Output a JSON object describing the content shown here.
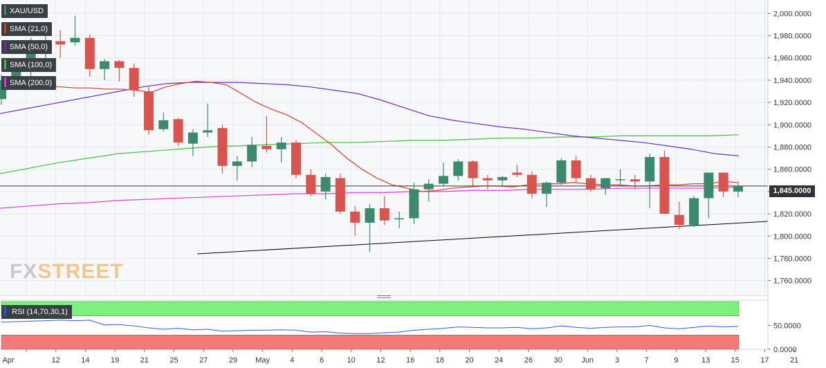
{
  "chart_data": {
    "type": "candlestick",
    "symbol": "XAU/USD",
    "current_price_label": "1,845.0000",
    "current_price": 1845,
    "ylim": [
      1748,
      2012
    ],
    "y_ticks": [
      1760,
      1780,
      1800,
      1820,
      1840,
      1860,
      1880,
      1900,
      1920,
      1940,
      1960,
      1980,
      2000
    ],
    "y_tick_labels": [
      "1,760.0000",
      "1,780.0000",
      "1,800.0000",
      "1,820.0000",
      "1,840.0000",
      "1,860.0000",
      "1,880.0000",
      "1,900.0000",
      "1,920.0000",
      "1,940.0000",
      "1,960.0000",
      "1,980.0000",
      "2,000.0000"
    ],
    "x_tick_labels": [
      "Apr",
      "12",
      "14",
      "19",
      "21",
      "25",
      "27",
      "29",
      "May",
      "4",
      "6",
      "10",
      "12",
      "16",
      "18",
      "20",
      "24",
      "26",
      "30",
      "Jun",
      "3",
      "7",
      "9",
      "13",
      "15",
      "17",
      "21"
    ],
    "colors": {
      "up": "#3b8a6e",
      "down": "#d9534f",
      "sma21": "#d93a2b",
      "sma50": "#6a2cb8",
      "sma100": "#3cbf3c",
      "sma200": "#d73ad9",
      "trendline": "#000000",
      "rsi": "#2a5bd7"
    },
    "candles": [
      {
        "o": 1923,
        "h": 1945,
        "l": 1918,
        "c": 1940
      },
      {
        "o": 1940,
        "h": 1958,
        "l": 1932,
        "c": 1952
      },
      {
        "o": 1952,
        "h": 1978,
        "l": 1942,
        "c": 1970
      },
      {
        "o": 1970,
        "h": 1982,
        "l": 1958,
        "c": 1975
      },
      {
        "o": 1975,
        "h": 1985,
        "l": 1960,
        "c": 1972
      },
      {
        "o": 1974,
        "h": 1998,
        "l": 1971,
        "c": 1978
      },
      {
        "o": 1978,
        "h": 1981,
        "l": 1943,
        "c": 1950
      },
      {
        "o": 1950,
        "h": 1959,
        "l": 1940,
        "c": 1957
      },
      {
        "o": 1957,
        "h": 1958,
        "l": 1939,
        "c": 1951
      },
      {
        "o": 1951,
        "h": 1955,
        "l": 1925,
        "c": 1931
      },
      {
        "o": 1930,
        "h": 1934,
        "l": 1891,
        "c": 1895
      },
      {
        "o": 1896,
        "h": 1911,
        "l": 1894,
        "c": 1904
      },
      {
        "o": 1905,
        "h": 1906,
        "l": 1881,
        "c": 1884
      },
      {
        "o": 1883,
        "h": 1896,
        "l": 1872,
        "c": 1893
      },
      {
        "o": 1893,
        "h": 1919,
        "l": 1889,
        "c": 1895
      },
      {
        "o": 1897,
        "h": 1900,
        "l": 1856,
        "c": 1863
      },
      {
        "o": 1863,
        "h": 1872,
        "l": 1850,
        "c": 1867
      },
      {
        "o": 1867,
        "h": 1889,
        "l": 1862,
        "c": 1882
      },
      {
        "o": 1881,
        "h": 1908,
        "l": 1875,
        "c": 1878
      },
      {
        "o": 1878,
        "h": 1889,
        "l": 1866,
        "c": 1884
      },
      {
        "o": 1884,
        "h": 1886,
        "l": 1852,
        "c": 1855
      },
      {
        "o": 1855,
        "h": 1860,
        "l": 1836,
        "c": 1838
      },
      {
        "o": 1840,
        "h": 1856,
        "l": 1833,
        "c": 1853
      },
      {
        "o": 1852,
        "h": 1856,
        "l": 1820,
        "c": 1822
      },
      {
        "o": 1822,
        "h": 1827,
        "l": 1800,
        "c": 1812
      },
      {
        "o": 1812,
        "h": 1829,
        "l": 1786,
        "c": 1825
      },
      {
        "o": 1825,
        "h": 1836,
        "l": 1810,
        "c": 1814
      },
      {
        "o": 1815,
        "h": 1822,
        "l": 1807,
        "c": 1816
      },
      {
        "o": 1816,
        "h": 1848,
        "l": 1811,
        "c": 1842
      },
      {
        "o": 1842,
        "h": 1851,
        "l": 1831,
        "c": 1847
      },
      {
        "o": 1847,
        "h": 1866,
        "l": 1845,
        "c": 1854
      },
      {
        "o": 1854,
        "h": 1869,
        "l": 1850,
        "c": 1867
      },
      {
        "o": 1867,
        "h": 1868,
        "l": 1845,
        "c": 1852
      },
      {
        "o": 1852,
        "h": 1855,
        "l": 1842,
        "c": 1850
      },
      {
        "o": 1850,
        "h": 1854,
        "l": 1845,
        "c": 1853
      },
      {
        "o": 1857,
        "h": 1864,
        "l": 1853,
        "c": 1855
      },
      {
        "o": 1855,
        "h": 1858,
        "l": 1834,
        "c": 1838
      },
      {
        "o": 1838,
        "h": 1849,
        "l": 1826,
        "c": 1848
      },
      {
        "o": 1848,
        "h": 1870,
        "l": 1846,
        "c": 1868
      },
      {
        "o": 1868,
        "h": 1872,
        "l": 1848,
        "c": 1852
      },
      {
        "o": 1852,
        "h": 1855,
        "l": 1840,
        "c": 1842
      },
      {
        "o": 1843,
        "h": 1852,
        "l": 1837,
        "c": 1852
      },
      {
        "o": 1851,
        "h": 1860,
        "l": 1845,
        "c": 1851
      },
      {
        "o": 1851,
        "h": 1855,
        "l": 1842,
        "c": 1849
      },
      {
        "o": 1849,
        "h": 1874,
        "l": 1825,
        "c": 1871
      },
      {
        "o": 1871,
        "h": 1877,
        "l": 1820,
        "c": 1820
      },
      {
        "o": 1819,
        "h": 1831,
        "l": 1806,
        "c": 1810
      },
      {
        "o": 1810,
        "h": 1836,
        "l": 1808,
        "c": 1834
      },
      {
        "o": 1834,
        "h": 1857,
        "l": 1816,
        "c": 1857
      },
      {
        "o": 1857,
        "h": 1857,
        "l": 1835,
        "c": 1840
      },
      {
        "o": 1840,
        "h": 1847,
        "l": 1835,
        "c": 1845
      }
    ],
    "sma21": [
      1935,
      1935,
      1934,
      1934,
      1934,
      1933,
      1933,
      1932,
      1932,
      1931,
      1929,
      1934,
      1937,
      1939,
      1938,
      1936,
      1928,
      1920,
      1914,
      1909,
      1902,
      1892,
      1882,
      1870,
      1860,
      1852,
      1846,
      1843,
      1840,
      1841,
      1843,
      1844,
      1845,
      1845,
      1844,
      1846,
      1847,
      1847,
      1848,
      1847,
      1846,
      1846,
      1845,
      1845,
      1846,
      1846,
      1847,
      1847,
      1849,
      1848
    ],
    "sma50": [
      1910,
      1914,
      1918,
      1922,
      1926,
      1930,
      1934,
      1937,
      1938,
      1938,
      1938,
      1937,
      1936,
      1934,
      1931,
      1928,
      1922,
      1915,
      1908,
      1904,
      1901,
      1898,
      1896,
      1893,
      1890,
      1888,
      1886,
      1884,
      1881,
      1878,
      1874,
      1872
    ],
    "sma100": [
      1856,
      1861,
      1866,
      1870,
      1874,
      1876,
      1878,
      1880,
      1881,
      1882,
      1883,
      1884,
      1884,
      1885,
      1886,
      1886,
      1887,
      1888,
      1888,
      1889,
      1889,
      1890,
      1890,
      1890,
      1890,
      1891
    ],
    "sma200": [
      1825,
      1827,
      1829,
      1830,
      1832,
      1833,
      1834,
      1835,
      1836,
      1837,
      1838,
      1838,
      1839,
      1839,
      1840,
      1840,
      1841,
      1841,
      1842,
      1842,
      1842,
      1843,
      1843,
      1843,
      1843,
      1844
    ],
    "trendline": [
      [
        13,
        1784
      ],
      [
        49,
        1812
      ]
    ],
    "rsi_label": "RSI (14,70,30,1)",
    "rsi_ticks": [
      0,
      50
    ],
    "rsi_tick_labels": [
      "0.0000",
      "50.0000"
    ],
    "rsi_overbought": 70,
    "rsi_oversold": 30,
    "rsi": [
      57,
      58,
      59,
      60,
      61,
      60,
      61,
      51,
      52,
      49,
      45,
      42,
      44,
      41,
      42,
      38,
      39,
      40,
      40,
      41,
      40,
      36,
      37,
      34,
      33,
      33,
      35,
      36,
      40,
      42,
      44,
      47,
      46,
      45,
      45,
      46,
      43,
      45,
      49,
      46,
      44,
      46,
      47,
      47,
      50,
      45,
      43,
      46,
      49,
      47,
      48
    ]
  },
  "legend": [
    {
      "label": "XAU/USD",
      "color": "#3b8a6e"
    },
    {
      "label": "SMA (21,0)",
      "color": "#d93a2b"
    },
    {
      "label": "SMA (50,0)",
      "color": "#6a2cb8"
    },
    {
      "label": "SMA (100,0)",
      "color": "#3cbf3c"
    },
    {
      "label": "SMA (200,0)",
      "color": "#d73ad9"
    }
  ],
  "watermark": {
    "a": "FX",
    "b": "STREET"
  }
}
